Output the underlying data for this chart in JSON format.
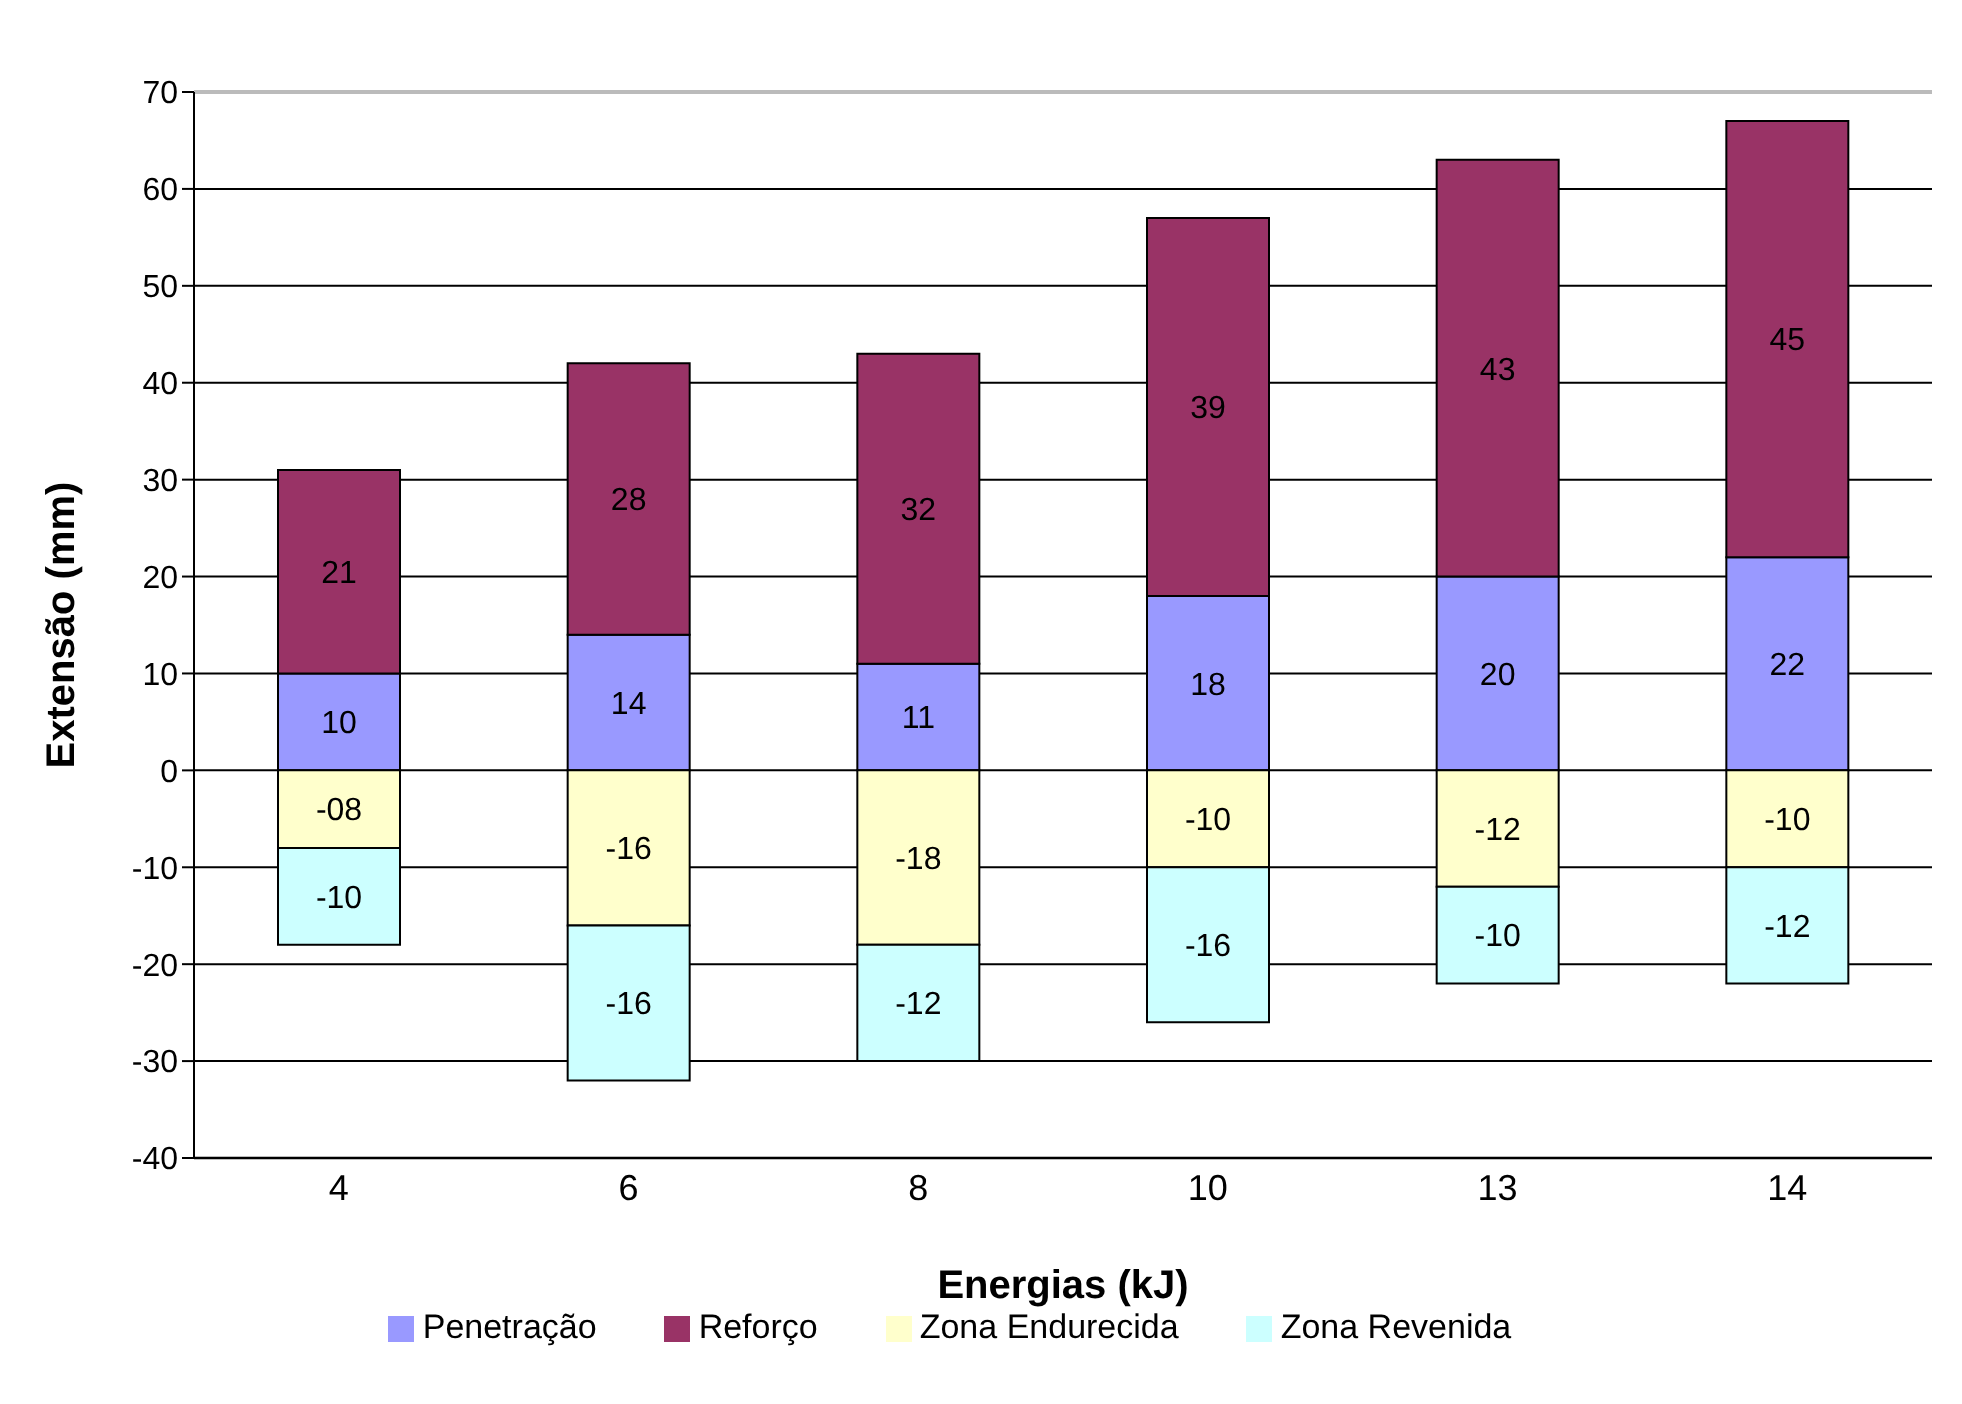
{
  "chart_data": {
    "type": "bar",
    "stacked": true,
    "xlabel": "Energias (kJ)",
    "ylabel": "Extensão (mm)",
    "categories": [
      "4",
      "6",
      "8",
      "10",
      "13",
      "14"
    ],
    "series": [
      {
        "name": "Penetração",
        "color": "#9999ff",
        "values": [
          10,
          14,
          11,
          18,
          20,
          22
        ],
        "value_labels": [
          "10",
          "14",
          "11",
          "18",
          "20",
          "22"
        ]
      },
      {
        "name": "Reforço",
        "color": "#993366",
        "values": [
          21,
          28,
          32,
          39,
          43,
          45
        ],
        "value_labels": [
          "21",
          "28",
          "32",
          "39",
          "43",
          "45"
        ]
      },
      {
        "name": "Zona Endurecida",
        "color": "#ffffcc",
        "values": [
          -8,
          -16,
          -18,
          -10,
          -12,
          -10
        ],
        "value_labels": [
          "-08",
          "-16",
          "-18",
          "-10",
          "-12",
          "-10"
        ]
      },
      {
        "name": "Zona Revenida",
        "color": "#ccffff",
        "values": [
          -10,
          -16,
          -12,
          -16,
          -10,
          -12
        ],
        "value_labels": [
          "-10",
          "-16",
          "-12",
          "-16",
          "-10",
          "-12"
        ]
      }
    ],
    "ylim": [
      -40,
      70
    ],
    "yticks": [
      -40,
      -30,
      -20,
      -10,
      0,
      10,
      20,
      30,
      40,
      50,
      60,
      70
    ],
    "grid": "y",
    "legend": "bottom"
  }
}
